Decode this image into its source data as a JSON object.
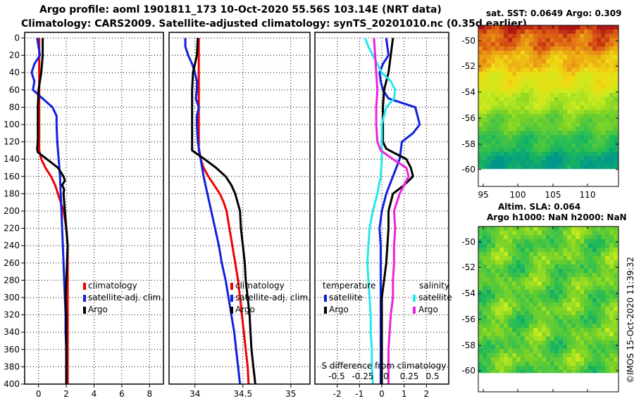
{
  "header": {
    "title_line1": "Argo profile: aoml 1901811_173 10-Oct-2020 55.56S 103.14E (NRT data)",
    "title_line2": "Climatology: CARS2009. Satellite-adjusted climatology: synTS_20201010.nc (0.35d earlier)"
  },
  "colors": {
    "climatology": "#ee0000",
    "satellite": "#1020dd",
    "argo": "#000000",
    "sat_salinity": "#22e8ee",
    "argo_salinity": "#ee22dd"
  },
  "chart_data": [
    {
      "type": "line",
      "name": "temperature",
      "ylabel": "",
      "xlabel": "",
      "ylim": [
        400,
        0
      ],
      "xlim": [
        -1,
        9
      ],
      "yticks": [
        0,
        20,
        40,
        60,
        80,
        100,
        120,
        140,
        160,
        180,
        200,
        220,
        240,
        260,
        280,
        300,
        320,
        340,
        360,
        380,
        400
      ],
      "xticks": [
        0,
        2,
        4,
        6,
        8
      ],
      "legend": [
        "climatology",
        "satellite-adj. clim.",
        "Argo"
      ],
      "series": [
        {
          "name": "climatology",
          "depth": [
            0,
            20,
            40,
            60,
            80,
            100,
            120,
            130,
            140,
            150,
            160,
            170,
            180,
            190,
            200,
            220,
            240,
            260,
            280,
            300,
            320,
            340,
            360,
            380,
            400
          ],
          "values": [
            0.05,
            0.05,
            0.05,
            0.05,
            0.05,
            0.05,
            0.05,
            0.05,
            0.2,
            0.5,
            0.9,
            1.2,
            1.4,
            1.6,
            1.8,
            2.0,
            2.1,
            2.1,
            2.1,
            2.1,
            2.1,
            2.1,
            2.1,
            2.1,
            2.1
          ]
        },
        {
          "name": "satellite-adj. clim.",
          "depth": [
            0,
            10,
            20,
            30,
            40,
            50,
            60,
            70,
            80,
            90,
            100,
            120,
            140,
            160,
            180,
            200,
            220,
            240,
            260,
            280,
            300,
            320,
            340,
            360,
            380,
            400
          ],
          "values": [
            -0.1,
            0.0,
            0.1,
            -0.3,
            -0.5,
            -0.3,
            -0.4,
            0.3,
            1.0,
            1.3,
            1.3,
            1.35,
            1.45,
            1.55,
            1.6,
            1.65,
            1.7,
            1.75,
            1.8,
            1.85,
            1.9,
            1.95,
            1.95,
            2.0,
            2.0,
            2.0
          ]
        },
        {
          "name": "Argo",
          "depth": [
            0,
            20,
            40,
            60,
            80,
            100,
            120,
            128,
            132,
            140,
            150,
            160,
            165,
            170,
            175,
            180,
            200,
            220,
            240,
            260,
            280,
            300,
            320,
            340,
            360,
            380,
            400
          ],
          "values": [
            0.3,
            0.3,
            0.2,
            0.0,
            -0.05,
            -0.05,
            -0.05,
            -0.1,
            -0.05,
            0.6,
            1.4,
            1.8,
            1.9,
            1.7,
            1.85,
            1.8,
            1.9,
            2.0,
            2.1,
            2.05,
            2.0,
            1.95,
            2.0,
            2.0,
            2.0,
            2.0,
            2.0
          ]
        }
      ]
    },
    {
      "type": "line",
      "name": "salinity",
      "ylim": [
        400,
        0
      ],
      "xlim": [
        33.73,
        35.2
      ],
      "xticks": [
        34,
        34.5,
        35
      ],
      "legend": [
        "climatology",
        "satellite-adj. clim.",
        "Argo"
      ],
      "series": [
        {
          "name": "climatology",
          "depth": [
            0,
            20,
            40,
            60,
            80,
            100,
            120,
            130,
            140,
            150,
            160,
            170,
            180,
            190,
            200,
            220,
            240,
            260,
            280,
            300,
            320,
            340,
            360,
            380,
            400
          ],
          "values": [
            34.04,
            34.04,
            34.04,
            34.04,
            34.04,
            34.04,
            34.04,
            34.04,
            34.06,
            34.09,
            34.14,
            34.2,
            34.26,
            34.3,
            34.33,
            34.36,
            34.39,
            34.42,
            34.45,
            34.47,
            34.49,
            34.51,
            34.53,
            34.55,
            34.56
          ]
        },
        {
          "name": "satellite-adj. clim.",
          "depth": [
            0,
            10,
            20,
            30,
            40,
            50,
            60,
            70,
            80,
            90,
            100,
            120,
            140,
            160,
            180,
            200,
            220,
            240,
            260,
            280,
            300,
            320,
            340,
            360,
            380,
            400
          ],
          "values": [
            33.9,
            33.9,
            33.93,
            33.97,
            34.0,
            34.02,
            34.02,
            34.01,
            34.04,
            34.02,
            34.02,
            34.03,
            34.06,
            34.09,
            34.13,
            34.17,
            34.21,
            34.25,
            34.28,
            34.32,
            34.35,
            34.38,
            34.41,
            34.43,
            34.45,
            34.47
          ]
        },
        {
          "name": "Argo",
          "depth": [
            0,
            20,
            40,
            60,
            80,
            100,
            120,
            130,
            140,
            150,
            160,
            170,
            180,
            200,
            220,
            240,
            260,
            280,
            300,
            320,
            340,
            360,
            380,
            400
          ],
          "values": [
            34.03,
            34.02,
            33.98,
            33.97,
            33.97,
            33.97,
            33.97,
            33.97,
            34.1,
            34.22,
            34.32,
            34.38,
            34.42,
            34.47,
            34.48,
            34.5,
            34.52,
            34.53,
            34.55,
            34.57,
            34.58,
            34.59,
            34.61,
            34.63
          ]
        }
      ]
    },
    {
      "type": "line",
      "name": "difference from climatology",
      "ylim": [
        400,
        0
      ],
      "xlim": [
        -3,
        3
      ],
      "xticks": [
        -2,
        -1,
        0,
        1,
        2
      ],
      "bottom_axis_label": "S difference from climatology",
      "bottom_ticks": [
        "-0.5",
        "-0.25",
        "0",
        "0.25",
        "0.5"
      ],
      "legend_temperature_title": "temperature",
      "legend_salinity_title": "salinity",
      "legend_temperature": [
        "satellite",
        "Argo"
      ],
      "legend_salinity": [
        "satellite",
        "Argo"
      ],
      "series": [
        {
          "name": "temperature satellite",
          "depth": [
            0,
            10,
            20,
            30,
            40,
            50,
            60,
            70,
            80,
            90,
            100,
            110,
            120,
            140,
            160,
            180,
            200,
            220,
            240,
            260,
            280,
            300,
            320,
            340,
            360,
            380,
            400
          ],
          "values": [
            0.2,
            0.25,
            0.3,
            0.05,
            -0.1,
            -0.05,
            0.05,
            0.3,
            1.5,
            1.6,
            1.7,
            1.4,
            0.9,
            0.8,
            0.5,
            0.2,
            0.0,
            -0.1,
            -0.05,
            -0.05,
            -0.05,
            -0.05,
            -0.05,
            -0.05,
            -0.05,
            -0.05,
            -0.05
          ]
        },
        {
          "name": "temperature Argo",
          "depth": [
            0,
            20,
            40,
            60,
            80,
            100,
            120,
            128,
            132,
            140,
            150,
            160,
            165,
            170,
            180,
            200,
            220,
            240,
            260,
            280,
            300,
            320,
            340,
            360,
            380,
            400
          ],
          "values": [
            0.5,
            0.4,
            0.3,
            0.1,
            0.05,
            0.05,
            0.05,
            0.2,
            0.5,
            1.1,
            1.3,
            1.4,
            1.2,
            1.0,
            0.5,
            0.3,
            0.3,
            0.25,
            0.2,
            0.1,
            0.0,
            0.0,
            0.0,
            0.0,
            0.0,
            0.0
          ]
        },
        {
          "name": "salinity satellite",
          "depth": [
            0,
            10,
            20,
            30,
            40,
            50,
            60,
            70,
            80,
            100,
            120,
            140,
            160,
            180,
            200,
            220,
            240,
            260,
            280,
            300,
            320,
            340,
            360,
            380,
            400
          ],
          "values": [
            -0.75,
            -0.6,
            -0.4,
            -0.2,
            0.0,
            0.4,
            0.6,
            0.55,
            0.2,
            0.0,
            0.0,
            0.0,
            -0.05,
            -0.2,
            -0.4,
            -0.55,
            -0.6,
            -0.65,
            -0.6,
            -0.55,
            -0.5,
            -0.5,
            -0.45,
            -0.45,
            -0.4
          ]
        },
        {
          "name": "salinity Argo",
          "depth": [
            0,
            20,
            40,
            60,
            80,
            100,
            120,
            130,
            140,
            150,
            160,
            170,
            180,
            200,
            220,
            240,
            260,
            280,
            300,
            320,
            340,
            360,
            380,
            400
          ],
          "values": [
            -0.35,
            -0.3,
            -0.25,
            -0.2,
            -0.25,
            -0.25,
            -0.2,
            -0.05,
            0.5,
            1.1,
            1.2,
            1.0,
            0.8,
            0.55,
            0.6,
            0.55,
            0.55,
            0.5,
            0.5,
            0.4,
            0.35,
            0.3,
            0.3,
            0.3
          ]
        }
      ]
    },
    {
      "type": "heatmap",
      "name": "sst_map",
      "title": "sat. SST: 0.0649 Argo: 0.309",
      "xticks": [
        "95",
        "100",
        "105",
        "110"
      ],
      "yticks": [
        "-50",
        "-52",
        "-54",
        "-56",
        "-58",
        "-60"
      ],
      "xlim": [
        93.5,
        112.5
      ],
      "ylim": [
        -61.5,
        -49.5
      ]
    },
    {
      "type": "heatmap",
      "name": "sla_map",
      "title_line1": "Altim. SLA: 0.064",
      "title_line2": "Argo h1000: NaN h2000: NaN",
      "yticks": [
        "-50",
        "-52",
        "-54",
        "-56",
        "-58",
        "-60"
      ],
      "ylim": [
        -61.5,
        -49.5
      ]
    }
  ],
  "credit": "©IMOS 15-Oct-2020 11:39:32"
}
